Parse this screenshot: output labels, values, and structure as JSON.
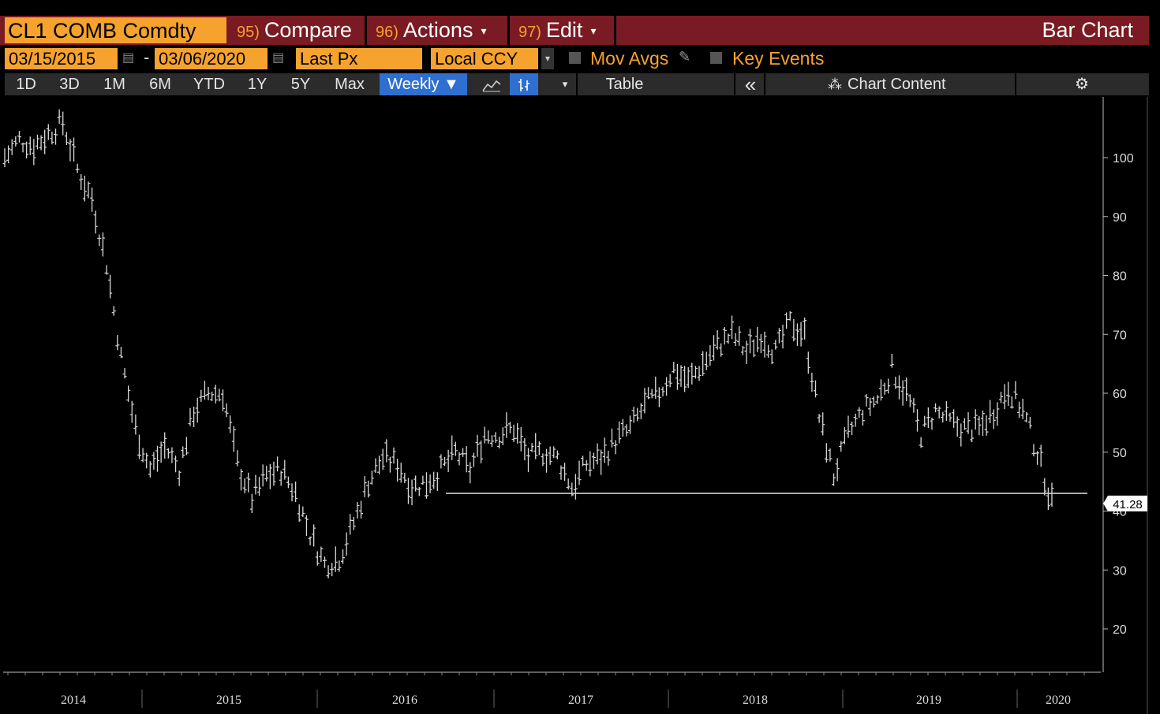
{
  "header": {
    "ticker": "CL1 COMB Comdty",
    "menus": [
      {
        "num": "95)",
        "label": "Compare",
        "caret": ""
      },
      {
        "num": "96)",
        "label": "Actions",
        "caret": "▾"
      },
      {
        "num": "97)",
        "label": "Edit",
        "caret": "▾"
      }
    ],
    "chart_type": "Bar Chart"
  },
  "controls": {
    "start_date": "03/15/2015",
    "end_date": "03/06/2020",
    "date_sep": "-",
    "field": "Last Px",
    "currency": "Local CCY",
    "mov_avgs": "Mov Avgs",
    "key_events": "Key Events"
  },
  "toolbar": {
    "ranges": [
      "1D",
      "3D",
      "1M",
      "6M",
      "YTD",
      "1Y",
      "5Y",
      "Max"
    ],
    "frequency": "Weekly ▼",
    "table": "Table",
    "collapse": "«",
    "chart_content": "Chart Content",
    "settings": "⚙"
  },
  "colors": {
    "accent_orange": "#f5a22e",
    "header_red": "#7a1a22",
    "selected_blue": "#2f6fd0",
    "price_bars": "#d9d9d9"
  },
  "chart_data": {
    "type": "bar",
    "series": [
      {
        "name": "CL1 COMB Comdty",
        "x": [
          "2014-03",
          "2014-04",
          "2014-05",
          "2014-06",
          "2014-07",
          "2014-08",
          "2014-09",
          "2014-10",
          "2014-11",
          "2014-12",
          "2015-01",
          "2015-02",
          "2015-03",
          "2015-04",
          "2015-05",
          "2015-06",
          "2015-07",
          "2015-08",
          "2015-09",
          "2015-10",
          "2015-11",
          "2015-12",
          "2016-01",
          "2016-02",
          "2016-03",
          "2016-04",
          "2016-05",
          "2016-06",
          "2016-07",
          "2016-08",
          "2016-09",
          "2016-10",
          "2016-11",
          "2016-12",
          "2017-01",
          "2017-02",
          "2017-03",
          "2017-04",
          "2017-05",
          "2017-06",
          "2017-07",
          "2017-08",
          "2017-09",
          "2017-10",
          "2017-11",
          "2017-12",
          "2018-01",
          "2018-02",
          "2018-03",
          "2018-04",
          "2018-05",
          "2018-06",
          "2018-07",
          "2018-08",
          "2018-09",
          "2018-10",
          "2018-11",
          "2018-12",
          "2019-01",
          "2019-02",
          "2019-03",
          "2019-04",
          "2019-05",
          "2019-06",
          "2019-07",
          "2019-08",
          "2019-09",
          "2019-10",
          "2019-11",
          "2019-12",
          "2020-01",
          "2020-02",
          "2020-03"
        ],
        "values": [
          100,
          103,
          102,
          104,
          106,
          98,
          93,
          82,
          66,
          54,
          47,
          51,
          47,
          57,
          60,
          60,
          48,
          42,
          46,
          47,
          43,
          36,
          31,
          32,
          38,
          45,
          49,
          48,
          44,
          45,
          47,
          50,
          47,
          53,
          53,
          54,
          49,
          50,
          49,
          44,
          48,
          49,
          52,
          54,
          58,
          60,
          64,
          62,
          65,
          68,
          70,
          67,
          70,
          67,
          72,
          70,
          56,
          46,
          53,
          57,
          59,
          64,
          60,
          53,
          57,
          55,
          54,
          54,
          57,
          61,
          57,
          50,
          41.28
        ]
      }
    ],
    "y_ticks": [
      20,
      30,
      40,
      50,
      60,
      70,
      80,
      90,
      100
    ],
    "ylim": [
      15,
      109
    ],
    "x_labels": [
      "2014",
      "2015",
      "2016",
      "2017",
      "2018",
      "2019",
      "2020"
    ],
    "last_value": "41.28",
    "support_level": 43,
    "axis_position": "right",
    "grid": false
  }
}
